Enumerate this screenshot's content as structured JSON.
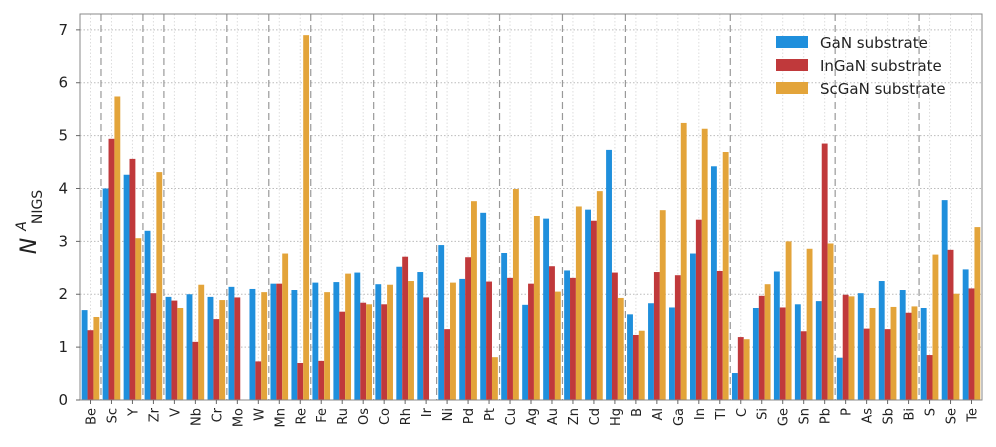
{
  "chart_data": {
    "type": "bar",
    "ylabel_main": "N",
    "ylabel_sup": "A",
    "ylabel_sub": "NIGS",
    "ylim": [
      0,
      7.3
    ],
    "yticks": [
      0,
      1,
      2,
      3,
      4,
      5,
      6,
      7
    ],
    "grid": true,
    "legend_position": "top-right",
    "categories": [
      "Be",
      "Sc",
      "Y",
      "Zr",
      "V",
      "Nb",
      "Cr",
      "Mo",
      "W",
      "Mn",
      "Re",
      "Fe",
      "Ru",
      "Os",
      "Co",
      "Rh",
      "Ir",
      "Ni",
      "Pd",
      "Pt",
      "Cu",
      "Ag",
      "Au",
      "Zn",
      "Cd",
      "Hg",
      "B",
      "Al",
      "Ga",
      "In",
      "Tl",
      "C",
      "Si",
      "Ge",
      "Sn",
      "Pb",
      "P",
      "As",
      "Sb",
      "Bi",
      "S",
      "Se",
      "Te"
    ],
    "group_separators_after": [
      "Be",
      "Y",
      "Zr",
      "Cr",
      "W",
      "Re",
      "Os",
      "Ir",
      "Pt",
      "Au",
      "Hg",
      "Tl",
      "Pb",
      "Bi"
    ],
    "series": [
      {
        "name": "GaN substrate",
        "color": "#1f8fdc",
        "values": [
          1.7,
          4.0,
          4.26,
          3.2,
          1.95,
          2.0,
          1.95,
          2.14,
          2.1,
          2.2,
          2.08,
          2.22,
          2.23,
          2.41,
          2.19,
          2.52,
          2.42,
          2.93,
          2.29,
          3.54,
          2.78,
          1.8,
          3.43,
          2.45,
          3.6,
          4.73,
          1.62,
          1.83,
          1.75,
          2.77,
          4.42,
          0.51,
          1.74,
          2.43,
          1.81,
          1.87,
          0.8,
          2.02,
          2.25,
          2.08,
          1.74,
          3.78,
          2.47
        ]
      },
      {
        "name": "InGaN substrate",
        "color": "#c0393b",
        "values": [
          1.32,
          4.94,
          4.56,
          2.02,
          1.88,
          1.1,
          1.53,
          1.94,
          0.73,
          2.2,
          0.7,
          0.74,
          1.67,
          1.84,
          1.81,
          2.71,
          1.94,
          1.34,
          2.7,
          2.24,
          2.31,
          2.2,
          2.53,
          2.31,
          3.39,
          2.41,
          1.23,
          2.42,
          2.36,
          3.41,
          2.44,
          1.19,
          1.97,
          1.75,
          1.3,
          4.85,
          1.99,
          1.35,
          1.34,
          1.65,
          0.85,
          2.84,
          2.11
        ]
      },
      {
        "name": "ScGaN substrate",
        "color": "#e3a43a",
        "values": [
          1.57,
          5.74,
          3.06,
          4.31,
          1.74,
          2.18,
          1.89,
          0.0,
          2.04,
          2.77,
          6.9,
          2.04,
          2.39,
          1.81,
          2.18,
          2.25,
          0.0,
          2.22,
          3.76,
          0.81,
          3.99,
          3.48,
          2.05,
          3.66,
          3.95,
          1.93,
          1.31,
          3.59,
          5.24,
          5.13,
          4.69,
          1.15,
          2.19,
          3.0,
          2.86,
          2.96,
          1.96,
          1.74,
          1.76,
          1.77,
          2.75,
          2.01,
          3.27
        ]
      }
    ]
  }
}
